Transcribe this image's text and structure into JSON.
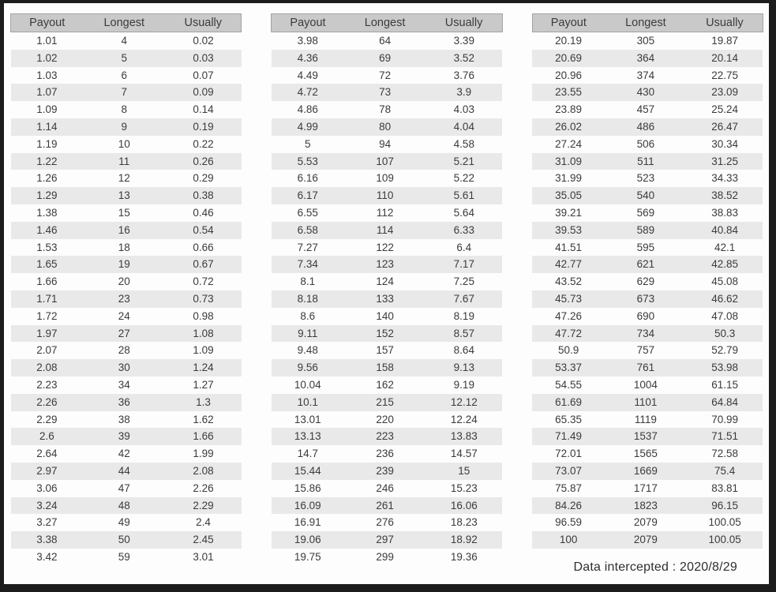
{
  "columns": [
    "Payout",
    "Longest",
    "Usually"
  ],
  "tables": [
    {
      "rows": [
        [
          1.01,
          4,
          0.02
        ],
        [
          1.02,
          5,
          0.03
        ],
        [
          1.03,
          6,
          0.07
        ],
        [
          1.07,
          7,
          0.09
        ],
        [
          1.09,
          8,
          0.14
        ],
        [
          1.14,
          9,
          0.19
        ],
        [
          1.19,
          10,
          0.22
        ],
        [
          1.22,
          11,
          0.26
        ],
        [
          1.26,
          12,
          0.29
        ],
        [
          1.29,
          13,
          0.38
        ],
        [
          1.38,
          15,
          0.46
        ],
        [
          1.46,
          16,
          0.54
        ],
        [
          1.53,
          18,
          0.66
        ],
        [
          1.65,
          19,
          0.67
        ],
        [
          1.66,
          20,
          0.72
        ],
        [
          1.71,
          23,
          0.73
        ],
        [
          1.72,
          24,
          0.98
        ],
        [
          1.97,
          27,
          1.08
        ],
        [
          2.07,
          28,
          1.09
        ],
        [
          2.08,
          30,
          1.24
        ],
        [
          2.23,
          34,
          1.27
        ],
        [
          2.26,
          36,
          1.3
        ],
        [
          2.29,
          38,
          1.62
        ],
        [
          2.6,
          39,
          1.66
        ],
        [
          2.64,
          42,
          1.99
        ],
        [
          2.97,
          44,
          2.08
        ],
        [
          3.06,
          47,
          2.26
        ],
        [
          3.24,
          48,
          2.29
        ],
        [
          3.27,
          49,
          2.4
        ],
        [
          3.38,
          50,
          2.45
        ],
        [
          3.42,
          59,
          3.01
        ]
      ]
    },
    {
      "rows": [
        [
          3.98,
          64,
          3.39
        ],
        [
          4.36,
          69,
          3.52
        ],
        [
          4.49,
          72,
          3.76
        ],
        [
          4.72,
          73,
          3.9
        ],
        [
          4.86,
          78,
          4.03
        ],
        [
          4.99,
          80,
          4.04
        ],
        [
          5,
          94,
          4.58
        ],
        [
          5.53,
          107,
          5.21
        ],
        [
          6.16,
          109,
          5.22
        ],
        [
          6.17,
          110,
          5.61
        ],
        [
          6.55,
          112,
          5.64
        ],
        [
          6.58,
          114,
          6.33
        ],
        [
          7.27,
          122,
          6.4
        ],
        [
          7.34,
          123,
          7.17
        ],
        [
          8.1,
          124,
          7.25
        ],
        [
          8.18,
          133,
          7.67
        ],
        [
          8.6,
          140,
          8.19
        ],
        [
          9.11,
          152,
          8.57
        ],
        [
          9.48,
          157,
          8.64
        ],
        [
          9.56,
          158,
          9.13
        ],
        [
          10.04,
          162,
          9.19
        ],
        [
          10.1,
          215,
          12.12
        ],
        [
          13.01,
          220,
          12.24
        ],
        [
          13.13,
          223,
          13.83
        ],
        [
          14.7,
          236,
          14.57
        ],
        [
          15.44,
          239,
          15
        ],
        [
          15.86,
          246,
          15.23
        ],
        [
          16.09,
          261,
          16.06
        ],
        [
          16.91,
          276,
          18.23
        ],
        [
          19.06,
          297,
          18.92
        ],
        [
          19.75,
          299,
          19.36
        ]
      ]
    },
    {
      "rows": [
        [
          20.19,
          305,
          19.87
        ],
        [
          20.69,
          364,
          20.14
        ],
        [
          20.96,
          374,
          22.75
        ],
        [
          23.55,
          430,
          23.09
        ],
        [
          23.89,
          457,
          25.24
        ],
        [
          26.02,
          486,
          26.47
        ],
        [
          27.24,
          506,
          30.34
        ],
        [
          31.09,
          511,
          31.25
        ],
        [
          31.99,
          523,
          34.33
        ],
        [
          35.05,
          540,
          38.52
        ],
        [
          39.21,
          569,
          38.83
        ],
        [
          39.53,
          589,
          40.84
        ],
        [
          41.51,
          595,
          42.1
        ],
        [
          42.77,
          621,
          42.85
        ],
        [
          43.52,
          629,
          45.08
        ],
        [
          45.73,
          673,
          46.62
        ],
        [
          47.26,
          690,
          47.08
        ],
        [
          47.72,
          734,
          50.3
        ],
        [
          50.9,
          757,
          52.79
        ],
        [
          53.37,
          761,
          53.98
        ],
        [
          54.55,
          1004,
          61.15
        ],
        [
          61.69,
          1101,
          64.84
        ],
        [
          65.35,
          1119,
          70.99
        ],
        [
          71.49,
          1537,
          71.51
        ],
        [
          72.01,
          1565,
          72.58
        ],
        [
          73.07,
          1669,
          75.4
        ],
        [
          75.87,
          1717,
          83.81
        ],
        [
          84.26,
          1823,
          96.15
        ],
        [
          96.59,
          2079,
          100.05
        ],
        [
          100,
          2079,
          100.05
        ]
      ]
    }
  ],
  "footer": {
    "note": "Data intercepted : 2020/8/29"
  },
  "colors": {
    "frame": "#1c1c1c",
    "page-bg": "#fdfdfd",
    "header-bg": "#c9c9c9",
    "stripe": "#e9e9e9",
    "text": "#3b3b3b"
  }
}
